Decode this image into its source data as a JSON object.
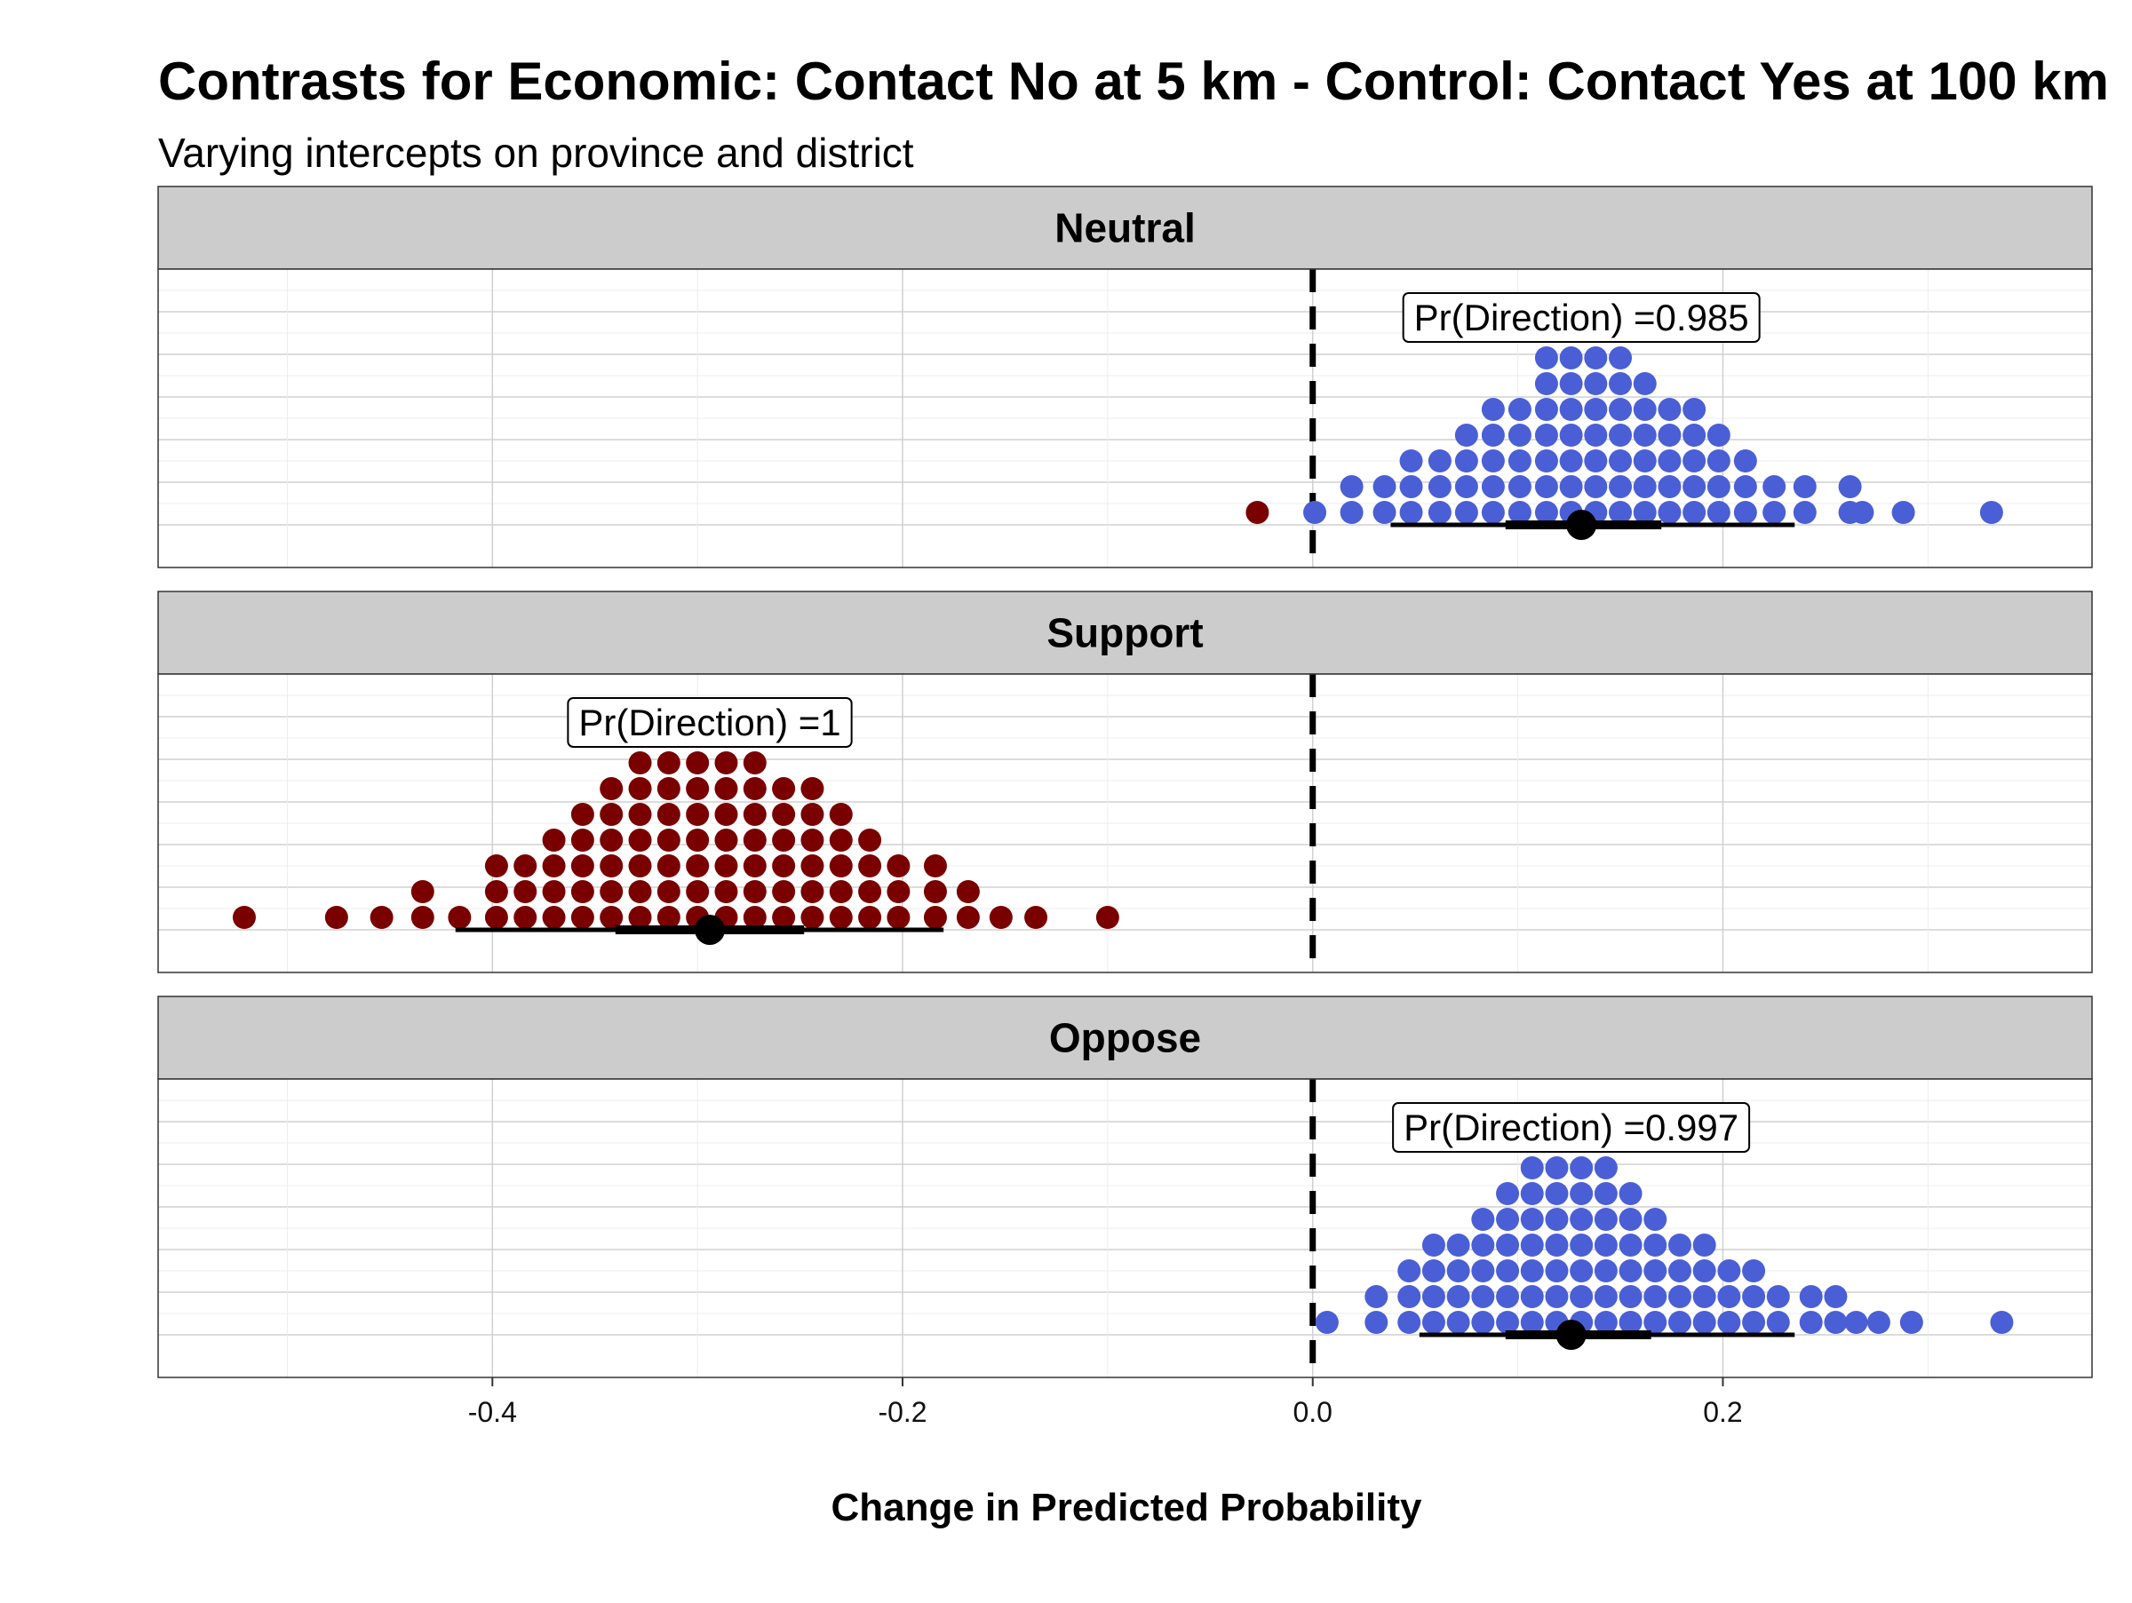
{
  "chart_data": {
    "type": "scatter",
    "title": "Contrasts for Economic: Contact No at 5 km - Control: Contact Yes at 100 km",
    "subtitle": "Varying intercepts on province and district",
    "xlabel": "Change in Predicted Probability",
    "ylabel": "",
    "xlim": [
      -0.563,
      0.38
    ],
    "x_ticks": [
      -0.4,
      -0.2,
      0.0,
      0.2
    ],
    "x_tick_labels": [
      "-0.4",
      "-0.2",
      "0.0",
      "0.2"
    ],
    "reference_line": 0.0,
    "grid": true,
    "legend": "none",
    "colors": {
      "positive": "#4a5fd6",
      "negative": "#7a0000",
      "strip_fill": "#cccccc",
      "point": "#000000"
    },
    "panels": [
      {
        "name": "Neutral",
        "pd_label": "Pr(Direction) =0.985",
        "median": 0.131,
        "interval_inner": [
          0.094,
          0.17
        ],
        "interval_outer": [
          0.038,
          0.235
        ],
        "dots": [
          [
            -0.027,
            1
          ],
          [
            0.001,
            1
          ],
          [
            0.019,
            2
          ],
          [
            0.035,
            2
          ],
          [
            0.048,
            3
          ],
          [
            0.062,
            3
          ],
          [
            0.075,
            4
          ],
          [
            0.088,
            5
          ],
          [
            0.101,
            5
          ],
          [
            0.114,
            7
          ],
          [
            0.126,
            7
          ],
          [
            0.138,
            7
          ],
          [
            0.15,
            7
          ],
          [
            0.162,
            6
          ],
          [
            0.174,
            5
          ],
          [
            0.186,
            5
          ],
          [
            0.198,
            4
          ],
          [
            0.211,
            3
          ],
          [
            0.225,
            2
          ],
          [
            0.24,
            2
          ],
          [
            0.262,
            2
          ],
          [
            0.268,
            1
          ],
          [
            0.288,
            1
          ],
          [
            0.331,
            1
          ]
        ]
      },
      {
        "name": "Support",
        "pd_label": "Pr(Direction) =1",
        "median": -0.294,
        "interval_inner": [
          -0.34,
          -0.248
        ],
        "interval_outer": [
          -0.418,
          -0.18
        ],
        "dots": [
          [
            -0.521,
            1
          ],
          [
            -0.476,
            1
          ],
          [
            -0.454,
            1
          ],
          [
            -0.434,
            2
          ],
          [
            -0.416,
            1
          ],
          [
            -0.398,
            3
          ],
          [
            -0.384,
            3
          ],
          [
            -0.37,
            4
          ],
          [
            -0.356,
            5
          ],
          [
            -0.342,
            6
          ],
          [
            -0.328,
            7
          ],
          [
            -0.314,
            7
          ],
          [
            -0.3,
            7
          ],
          [
            -0.286,
            7
          ],
          [
            -0.272,
            7
          ],
          [
            -0.258,
            6
          ],
          [
            -0.244,
            6
          ],
          [
            -0.23,
            5
          ],
          [
            -0.216,
            4
          ],
          [
            -0.202,
            3
          ],
          [
            -0.184,
            3
          ],
          [
            -0.168,
            2
          ],
          [
            -0.152,
            1
          ],
          [
            -0.135,
            1
          ],
          [
            -0.1,
            1
          ]
        ]
      },
      {
        "name": "Oppose",
        "pd_label": "Pr(Direction) =0.997",
        "median": 0.126,
        "interval_inner": [
          0.094,
          0.165
        ],
        "interval_outer": [
          0.052,
          0.235
        ],
        "dots": [
          [
            0.007,
            1
          ],
          [
            0.031,
            2
          ],
          [
            0.047,
            3
          ],
          [
            0.059,
            4
          ],
          [
            0.071,
            4
          ],
          [
            0.083,
            5
          ],
          [
            0.095,
            6
          ],
          [
            0.107,
            7
          ],
          [
            0.119,
            7
          ],
          [
            0.131,
            7
          ],
          [
            0.143,
            7
          ],
          [
            0.155,
            6
          ],
          [
            0.167,
            5
          ],
          [
            0.179,
            4
          ],
          [
            0.191,
            4
          ],
          [
            0.203,
            3
          ],
          [
            0.215,
            3
          ],
          [
            0.227,
            2
          ],
          [
            0.243,
            2
          ],
          [
            0.255,
            2
          ],
          [
            0.265,
            1
          ],
          [
            0.276,
            1
          ],
          [
            0.292,
            1
          ],
          [
            0.336,
            1
          ]
        ]
      }
    ]
  }
}
